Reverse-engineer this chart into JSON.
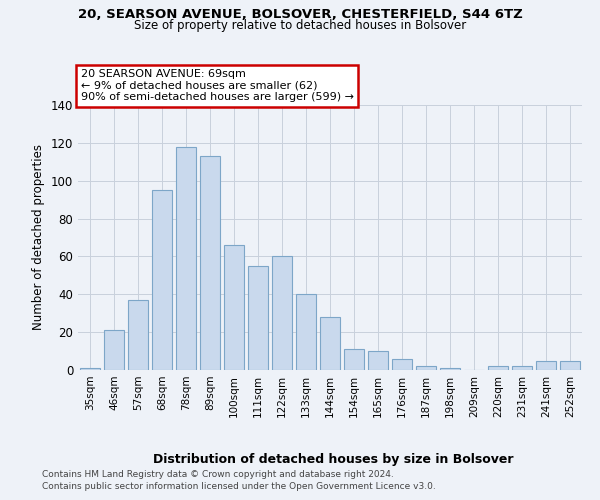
{
  "title": "20, SEARSON AVENUE, BOLSOVER, CHESTERFIELD, S44 6TZ",
  "subtitle": "Size of property relative to detached houses in Bolsover",
  "xlabel": "Distribution of detached houses by size in Bolsover",
  "ylabel": "Number of detached properties",
  "categories": [
    "35sqm",
    "46sqm",
    "57sqm",
    "68sqm",
    "78sqm",
    "89sqm",
    "100sqm",
    "111sqm",
    "122sqm",
    "133sqm",
    "144sqm",
    "154sqm",
    "165sqm",
    "176sqm",
    "187sqm",
    "198sqm",
    "209sqm",
    "220sqm",
    "231sqm",
    "241sqm",
    "252sqm"
  ],
  "values": [
    1,
    21,
    37,
    95,
    118,
    113,
    66,
    55,
    60,
    40,
    28,
    11,
    10,
    6,
    2,
    1,
    0,
    2,
    2,
    5,
    5
  ],
  "bar_color": "#c9d9ed",
  "bar_edge_color": "#7da6c8",
  "annotation_lines": [
    "20 SEARSON AVENUE: 69sqm",
    "← 9% of detached houses are smaller (62)",
    "90% of semi-detached houses are larger (599) →"
  ],
  "annotation_box_color": "#cc0000",
  "ylim": [
    0,
    140
  ],
  "yticks": [
    0,
    20,
    40,
    60,
    80,
    100,
    120,
    140
  ],
  "footer_line1": "Contains HM Land Registry data © Crown copyright and database right 2024.",
  "footer_line2": "Contains public sector information licensed under the Open Government Licence v3.0.",
  "background_color": "#eef2f8",
  "plot_bg_color": "#eef2f8",
  "grid_color": "#c8d0dc"
}
